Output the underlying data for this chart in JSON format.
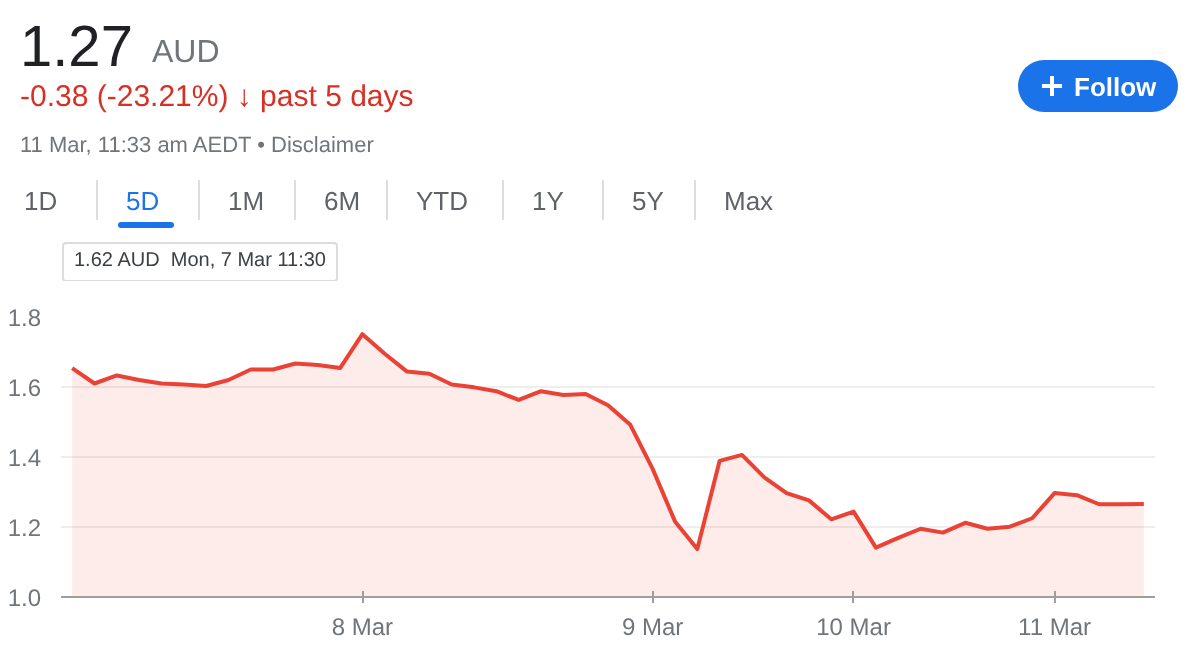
{
  "chart_data": {
    "type": "area",
    "title": "1.27",
    "annotations": [
      "AUD",
      "-0.38 (-23.21%) ↓ past 5 days",
      "11 Mar, 11:33 am AEDT • Disclaimer",
      "1D",
      "5D",
      "1M",
      "6M",
      "YTD",
      "1Y",
      "5Y",
      "Max",
      "Follow",
      "1.62 AUD  Mon, 7 Mar 11:30"
    ],
    "categories": [
      null,
      null,
      null,
      null,
      null,
      null,
      null,
      null,
      null,
      null,
      null,
      null,
      null,
      "8 Mar",
      null,
      null,
      null,
      null,
      null,
      null,
      null,
      null,
      null,
      null,
      null,
      null,
      "9 Mar",
      null,
      null,
      null,
      null,
      null,
      null,
      null,
      null,
      "10 Mar",
      null,
      null,
      null,
      null,
      null,
      null,
      null,
      null,
      "11 Mar",
      null,
      null,
      null,
      null
    ],
    "values": [
      1.654,
      1.61,
      1.633,
      1.62,
      1.61,
      1.607,
      1.603,
      1.62,
      1.65,
      1.65,
      1.667,
      1.663,
      1.654,
      1.751,
      1.695,
      1.644,
      1.638,
      1.607,
      1.599,
      1.588,
      1.563,
      1.588,
      1.577,
      1.58,
      1.548,
      1.492,
      1.366,
      1.216,
      1.137,
      1.389,
      1.406,
      1.342,
      1.297,
      1.276,
      1.222,
      1.244,
      1.141,
      1.169,
      1.195,
      1.184,
      1.212,
      1.195,
      1.201,
      1.225,
      1.297,
      1.291,
      1.265,
      1.265,
      1.266
    ],
    "color": "#ea4335",
    "ylim": [
      1.0,
      1.8
    ],
    "yticks": [
      {
        "value": 1.0,
        "label": "1.0"
      },
      1.2,
      1.4,
      1.6,
      1.8
    ],
    "grid": "y"
  }
}
